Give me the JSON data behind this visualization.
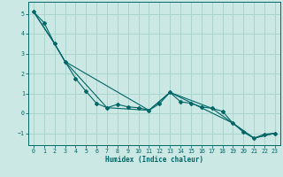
{
  "xlabel": "Humidex (Indice chaleur)",
  "bg_color": "#cce8e4",
  "grid_color": "#aad4cc",
  "line_color": "#006666",
  "xlim": [
    -0.5,
    23.5
  ],
  "ylim": [
    -1.6,
    5.6
  ],
  "yticks": [
    -1,
    0,
    1,
    2,
    3,
    4,
    5
  ],
  "xticks": [
    0,
    1,
    2,
    3,
    4,
    5,
    6,
    7,
    8,
    9,
    10,
    11,
    12,
    13,
    14,
    15,
    16,
    17,
    18,
    19,
    20,
    21,
    22,
    23
  ],
  "line1_x": [
    0,
    1,
    2,
    3,
    4,
    5,
    6,
    7,
    8,
    9,
    10,
    11,
    12,
    13,
    14,
    15,
    16,
    17,
    18,
    19,
    20,
    21,
    22,
    23
  ],
  "line1_y": [
    5.1,
    4.55,
    3.5,
    2.6,
    1.75,
    1.1,
    0.5,
    0.28,
    0.45,
    0.32,
    0.28,
    0.15,
    0.48,
    1.05,
    0.58,
    0.5,
    0.32,
    0.25,
    0.1,
    -0.5,
    -0.95,
    -1.25,
    -1.05,
    -1.0
  ],
  "line2_x": [
    0,
    2,
    3,
    7,
    11,
    13,
    17,
    19,
    21,
    23
  ],
  "line2_y": [
    5.1,
    3.5,
    2.6,
    0.28,
    0.15,
    1.05,
    0.25,
    -0.5,
    -1.25,
    -1.0
  ],
  "line3_x": [
    0,
    2,
    3,
    11,
    13,
    19,
    21,
    23
  ],
  "line3_y": [
    5.1,
    3.5,
    2.6,
    0.15,
    1.05,
    -0.5,
    -1.25,
    -1.0
  ]
}
